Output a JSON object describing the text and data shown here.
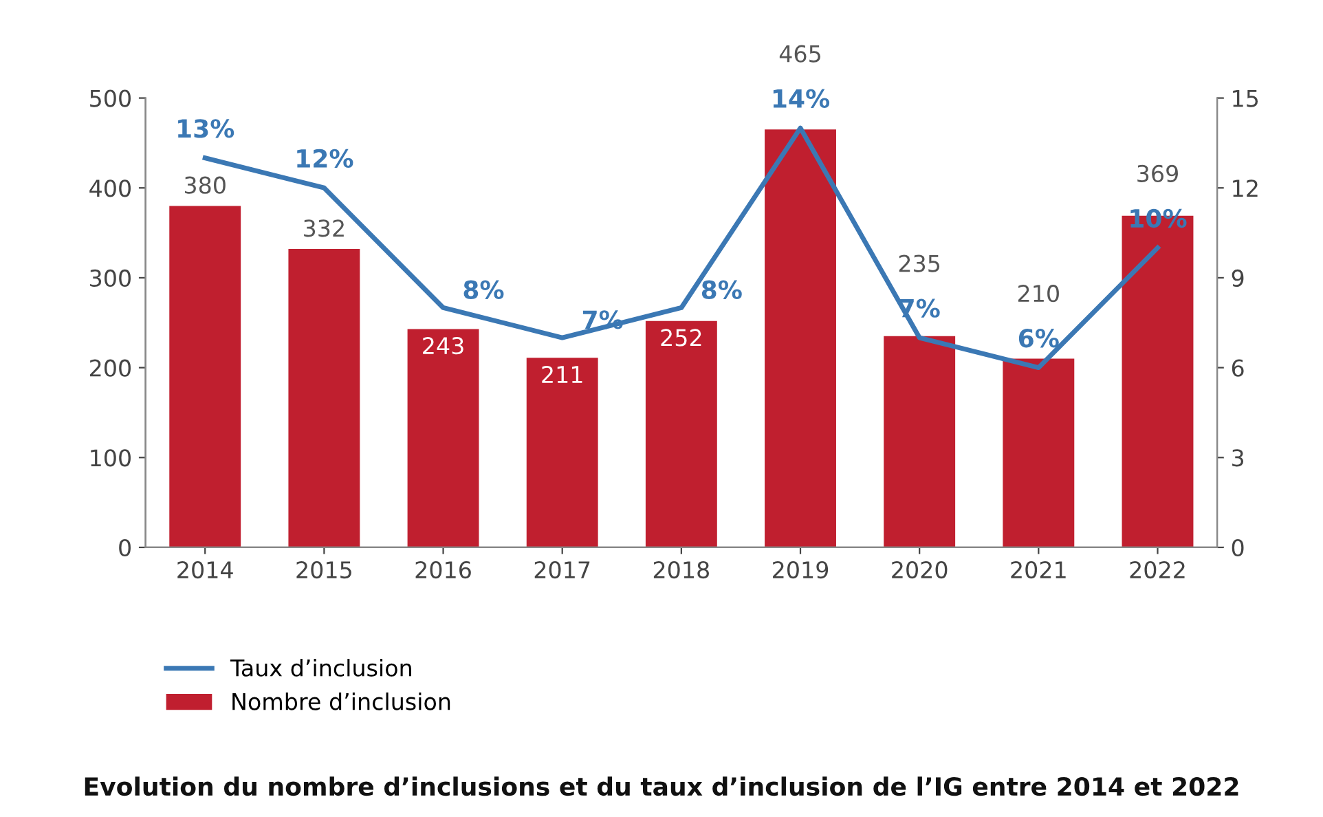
{
  "chart_data": {
    "type": "bar",
    "title": "Evolution du nombre d’inclusions et du taux d’inclusion de l’IG entre 2014 et 2022",
    "categories": [
      "2014",
      "2015",
      "2016",
      "2017",
      "2018",
      "2019",
      "2020",
      "2021",
      "2022"
    ],
    "series": [
      {
        "name": "Taux d’inclusion",
        "type": "line",
        "axis": "y2",
        "color": "#3b78b4",
        "values": [
          13,
          12,
          8,
          7,
          8,
          14,
          7,
          6,
          10
        ],
        "value_labels": [
          "13%",
          "12%",
          "8%",
          "7%",
          "8%",
          "14%",
          "7%",
          "6%",
          "10%"
        ]
      },
      {
        "name": "Nombre d’inclusion",
        "color": "#c01f2f",
        "values": [
          380,
          332,
          243,
          211,
          252,
          465,
          235,
          210,
          369
        ],
        "value_labels": [
          "380",
          "332",
          "243",
          "211",
          "252",
          "465",
          "235",
          "210",
          "369"
        ]
      }
    ],
    "ylim": [
      0,
      500
    ],
    "yticks": [
      0,
      100,
      200,
      300,
      400,
      500
    ],
    "y2lim": [
      0,
      15
    ],
    "y2ticks": [
      0,
      3,
      6,
      9,
      12,
      15
    ],
    "grid": false,
    "legend": "bottom left",
    "marker": "none",
    "line_style": "solid"
  }
}
